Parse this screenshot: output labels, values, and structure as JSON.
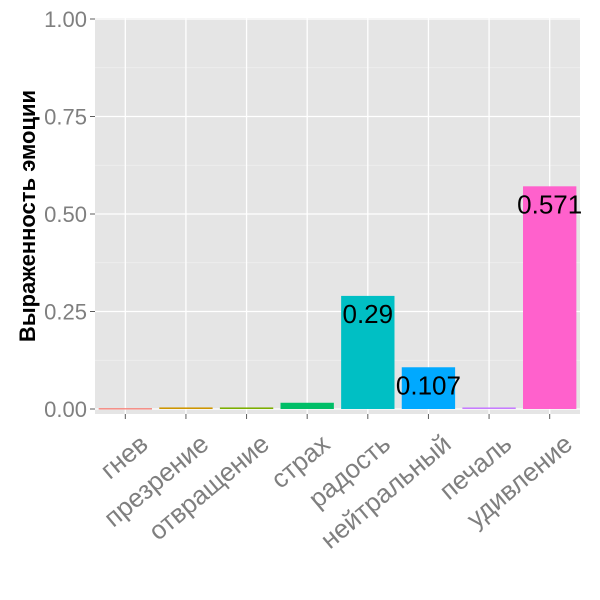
{
  "chart_data": {
    "type": "bar",
    "title": "",
    "xlabel": "",
    "ylabel": "Выраженность эмоции",
    "ylim": [
      0,
      1
    ],
    "yticks": [
      "0.00",
      "0.25",
      "0.50",
      "0.75",
      "1.00"
    ],
    "grid": true,
    "legend": "none",
    "categories": [
      "гнев",
      "презрение",
      "отвращение",
      "страх",
      "радость",
      "нейтральный",
      "печаль",
      "удивление"
    ],
    "values": [
      0.002,
      0.004,
      0.004,
      0.016,
      0.29,
      0.107,
      0.004,
      0.571
    ],
    "data_labels": [
      "",
      "",
      "",
      "",
      "0.29",
      "0.107",
      "",
      "0.571"
    ],
    "colors": [
      "#F8766D",
      "#CD9600",
      "#7CAE00",
      "#00BE67",
      "#00BFC4",
      "#00A9FF",
      "#C77CFF",
      "#FF61CC"
    ]
  }
}
